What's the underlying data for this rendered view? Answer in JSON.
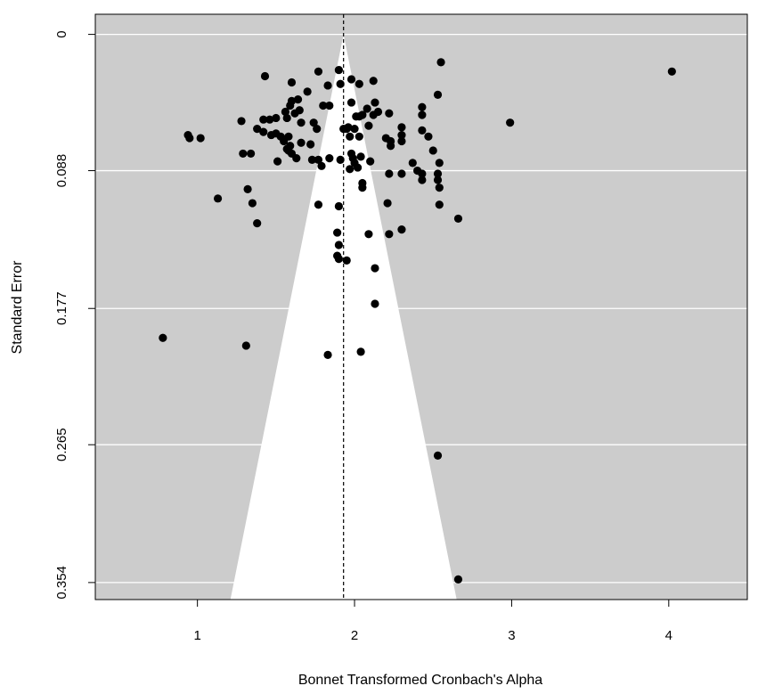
{
  "chart_data": {
    "type": "scatter",
    "title": "",
    "xlabel": "Bonnet Transformed Cronbach's Alpha",
    "ylabel": "Standard Error",
    "xlim": [
      0.35,
      4.5
    ],
    "ylim": [
      0.365,
      -0.013
    ],
    "y_reversed": true,
    "x_ticks": [
      1,
      2,
      3,
      4
    ],
    "x_tick_labels": [
      "1",
      "2",
      "3",
      "4"
    ],
    "y_ticks": [
      0,
      0.088,
      0.177,
      0.265,
      0.354
    ],
    "y_tick_labels": [
      "0",
      "0.088",
      "0.177",
      "0.265",
      "0.354"
    ],
    "grid": "horizontal lines at y ticks",
    "legend": "none",
    "summary_estimate": 1.93,
    "funnel": {
      "center": 1.93,
      "apex_se": 0,
      "base_se": 0.365,
      "left_at_base": 1.21,
      "right_at_base": 2.65
    },
    "colors": {
      "plot_background": "#cccccc",
      "funnel_fill": "#ffffff",
      "gridline": "#ffffff",
      "point": "#000000",
      "reference_line": "#000000"
    },
    "series": [
      {
        "values": [
          [
            4.02,
            0.024
          ],
          [
            2.55,
            0.018
          ],
          [
            2.99,
            0.057
          ],
          [
            1.43,
            0.027
          ],
          [
            1.6,
            0.031
          ],
          [
            1.77,
            0.024
          ],
          [
            1.9,
            0.023
          ],
          [
            1.98,
            0.029
          ],
          [
            1.7,
            0.037
          ],
          [
            1.83,
            0.033
          ],
          [
            1.91,
            0.032
          ],
          [
            2.03,
            0.032
          ],
          [
            2.12,
            0.03
          ],
          [
            2.53,
            0.039
          ],
          [
            1.6,
            0.043
          ],
          [
            1.64,
            0.042
          ],
          [
            1.59,
            0.046
          ],
          [
            1.56,
            0.05
          ],
          [
            1.8,
            0.046
          ],
          [
            1.84,
            0.046
          ],
          [
            1.98,
            0.044
          ],
          [
            2.13,
            0.044
          ],
          [
            2.08,
            0.048
          ],
          [
            2.15,
            0.05
          ],
          [
            2.43,
            0.047
          ],
          [
            1.62,
            0.051
          ],
          [
            1.65,
            0.049
          ],
          [
            1.42,
            0.055
          ],
          [
            1.46,
            0.055
          ],
          [
            1.5,
            0.054
          ],
          [
            1.57,
            0.054
          ],
          [
            1.28,
            0.056
          ],
          [
            2.01,
            0.053
          ],
          [
            2.03,
            0.053
          ],
          [
            2.05,
            0.052
          ],
          [
            2.12,
            0.052
          ],
          [
            2.22,
            0.051
          ],
          [
            2.43,
            0.052
          ],
          [
            1.66,
            0.057
          ],
          [
            1.74,
            0.057
          ],
          [
            1.76,
            0.061
          ],
          [
            1.96,
            0.06
          ],
          [
            2.0,
            0.061
          ],
          [
            2.09,
            0.059
          ],
          [
            2.3,
            0.06
          ],
          [
            2.43,
            0.062
          ],
          [
            0.94,
            0.065
          ],
          [
            0.95,
            0.067
          ],
          [
            1.02,
            0.067
          ],
          [
            1.38,
            0.061
          ],
          [
            1.42,
            0.063
          ],
          [
            1.47,
            0.065
          ],
          [
            1.5,
            0.064
          ],
          [
            1.53,
            0.066
          ],
          [
            1.58,
            0.066
          ],
          [
            1.55,
            0.069
          ],
          [
            1.59,
            0.072
          ],
          [
            1.66,
            0.07
          ],
          [
            1.72,
            0.071
          ],
          [
            1.93,
            0.061
          ],
          [
            1.95,
            0.061
          ],
          [
            1.97,
            0.066
          ],
          [
            2.03,
            0.066
          ],
          [
            2.2,
            0.067
          ],
          [
            2.23,
            0.069
          ],
          [
            2.23,
            0.072
          ],
          [
            2.3,
            0.065
          ],
          [
            2.3,
            0.069
          ],
          [
            2.47,
            0.066
          ],
          [
            1.29,
            0.077
          ],
          [
            1.34,
            0.077
          ],
          [
            1.57,
            0.074
          ],
          [
            1.58,
            0.075
          ],
          [
            1.6,
            0.077
          ],
          [
            1.63,
            0.08
          ],
          [
            1.73,
            0.081
          ],
          [
            1.77,
            0.081
          ],
          [
            1.98,
            0.077
          ],
          [
            1.99,
            0.08
          ],
          [
            2.04,
            0.079
          ],
          [
            2.5,
            0.075
          ],
          [
            2.37,
            0.083
          ],
          [
            2.54,
            0.083
          ],
          [
            1.51,
            0.082
          ],
          [
            1.84,
            0.08
          ],
          [
            1.91,
            0.081
          ],
          [
            1.79,
            0.085
          ],
          [
            2.0,
            0.083
          ],
          [
            1.97,
            0.087
          ],
          [
            2.02,
            0.086
          ],
          [
            2.1,
            0.082
          ],
          [
            2.22,
            0.09
          ],
          [
            2.3,
            0.09
          ],
          [
            2.43,
            0.09
          ],
          [
            2.43,
            0.094
          ],
          [
            2.53,
            0.09
          ],
          [
            2.53,
            0.094
          ],
          [
            2.54,
            0.099
          ],
          [
            2.05,
            0.096
          ],
          [
            2.05,
            0.099
          ],
          [
            2.4,
            0.088
          ],
          [
            1.32,
            0.1
          ],
          [
            1.13,
            0.106
          ],
          [
            1.35,
            0.109
          ],
          [
            1.38,
            0.122
          ],
          [
            1.77,
            0.11
          ],
          [
            1.9,
            0.111
          ],
          [
            2.21,
            0.109
          ],
          [
            2.54,
            0.11
          ],
          [
            2.66,
            0.119
          ],
          [
            2.22,
            0.129
          ],
          [
            2.3,
            0.126
          ],
          [
            1.89,
            0.128
          ],
          [
            2.09,
            0.129
          ],
          [
            1.9,
            0.136
          ],
          [
            1.89,
            0.143
          ],
          [
            1.9,
            0.145
          ],
          [
            1.95,
            0.146
          ],
          [
            2.13,
            0.151
          ],
          [
            2.13,
            0.174
          ],
          [
            0.78,
            0.196
          ],
          [
            1.31,
            0.201
          ],
          [
            1.83,
            0.207
          ],
          [
            2.04,
            0.205
          ],
          [
            2.53,
            0.272
          ],
          [
            2.66,
            0.352
          ]
        ]
      }
    ]
  }
}
